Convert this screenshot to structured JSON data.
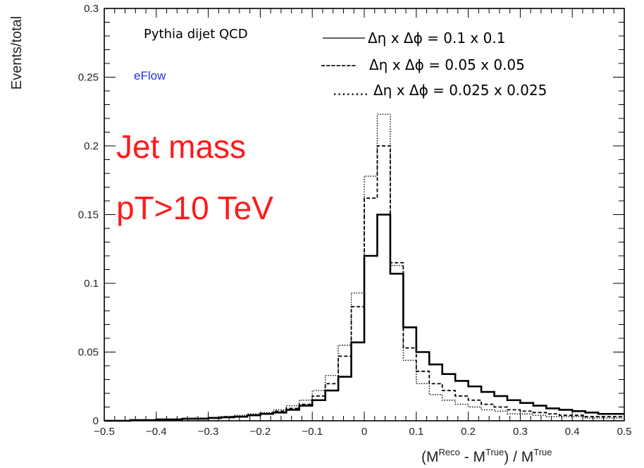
{
  "chart_data": {
    "type": "line",
    "style": "step-histogram",
    "ylabel": "Events/total",
    "xlabel": {
      "open": "(M",
      "sup1": "Reco",
      "mid": " - M",
      "sup2": "True",
      "close": ") / M",
      "sup3": "True"
    },
    "xlim": [
      -0.5,
      0.5
    ],
    "ylim": [
      0,
      0.3
    ],
    "x_ticks": [
      -0.5,
      -0.4,
      -0.3,
      -0.2,
      -0.1,
      0,
      0.1,
      0.2,
      0.3,
      0.4,
      0.5
    ],
    "x_tick_labels": [
      "−0.5",
      "−0.4",
      "−0.3",
      "−0.2",
      "−0.1",
      "0",
      "0.1",
      "0.2",
      "0.3",
      "0.4",
      "0.5"
    ],
    "y_ticks": [
      0,
      0.05,
      0.1,
      0.15,
      0.2,
      0.25,
      0.3
    ],
    "y_tick_labels": [
      "0",
      "0.05",
      "0.1",
      "0.15",
      "0.2",
      "0.25",
      "0.3"
    ],
    "grid": false,
    "bin_edges": [
      -0.5,
      -0.475,
      -0.45,
      -0.425,
      -0.4,
      -0.375,
      -0.35,
      -0.325,
      -0.3,
      -0.275,
      -0.25,
      -0.225,
      -0.2,
      -0.175,
      -0.15,
      -0.125,
      -0.1,
      -0.075,
      -0.05,
      -0.025,
      0,
      0.025,
      0.05,
      0.075,
      0.1,
      0.125,
      0.15,
      0.175,
      0.2,
      0.225,
      0.25,
      0.275,
      0.3,
      0.325,
      0.35,
      0.375,
      0.4,
      0.425,
      0.45,
      0.475,
      0.5
    ],
    "series": [
      {
        "name": "Δη x Δϕ = 0.1 x 0.1",
        "line_style": "solid",
        "values": [
          0.0,
          0.0,
          0.0005,
          0.0005,
          0.001,
          0.001,
          0.0015,
          0.0015,
          0.002,
          0.0025,
          0.003,
          0.004,
          0.005,
          0.006,
          0.008,
          0.011,
          0.015,
          0.022,
          0.032,
          0.057,
          0.12,
          0.15,
          0.107,
          0.068,
          0.05,
          0.041,
          0.034,
          0.029,
          0.025,
          0.021,
          0.018,
          0.015,
          0.013,
          0.011,
          0.009,
          0.008,
          0.007,
          0.006,
          0.005,
          0.005
        ]
      },
      {
        "name": "Δη x Δϕ = 0.05 x 0.05",
        "line_style": "dashed",
        "values": [
          0.0,
          0.0,
          0.0005,
          0.0005,
          0.001,
          0.001,
          0.0015,
          0.0015,
          0.002,
          0.003,
          0.003,
          0.004,
          0.005,
          0.007,
          0.009,
          0.012,
          0.018,
          0.027,
          0.047,
          0.083,
          0.162,
          0.2,
          0.115,
          0.053,
          0.036,
          0.027,
          0.022,
          0.018,
          0.015,
          0.012,
          0.01,
          0.008,
          0.007,
          0.006,
          0.005,
          0.004,
          0.004,
          0.003,
          0.003,
          0.003
        ]
      },
      {
        "name": "Δη x Δϕ = 0.025 x 0.025",
        "line_style": "dotted",
        "values": [
          0.0,
          0.0,
          0.0005,
          0.0005,
          0.001,
          0.001,
          0.0015,
          0.002,
          0.0025,
          0.003,
          0.004,
          0.005,
          0.006,
          0.008,
          0.011,
          0.015,
          0.022,
          0.033,
          0.055,
          0.093,
          0.178,
          0.223,
          0.113,
          0.044,
          0.027,
          0.019,
          0.015,
          0.012,
          0.01,
          0.008,
          0.007,
          0.005,
          0.005,
          0.004,
          0.003,
          0.003,
          0.003,
          0.002,
          0.002,
          0.002
        ]
      }
    ],
    "legend": {
      "entries": [
        "Δη x Δϕ = 0.1 x 0.1",
        "Δη x Δϕ = 0.05 x 0.05",
        "Δη x Δϕ = 0.025 x 0.025"
      ],
      "placement": "top-right"
    },
    "annotations": {
      "generator": "Pythia dijet QCD",
      "algorithm": "eFlow",
      "label1": "Jet mass",
      "label2": "pT>10 TeV",
      "legend_dashes": "-------",
      "legend_dots": "........"
    },
    "colors": {
      "eflow": "#2233dd",
      "big_label": "#ff1a1a",
      "lines": "#000000"
    }
  }
}
